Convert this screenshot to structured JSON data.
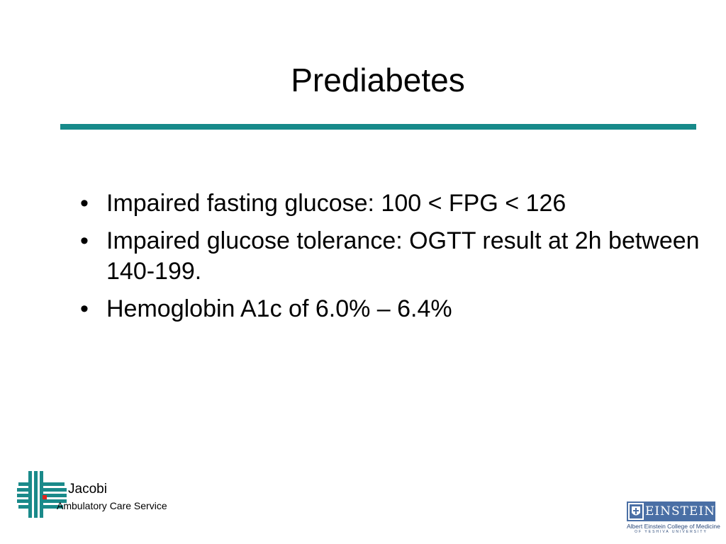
{
  "slide": {
    "title": "Prediabetes",
    "bullet_symbol": "•",
    "bullets": [
      {
        "text": "Impaired fasting glucose:  100 < FPG < 126"
      },
      {
        "text": "Impaired glucose tolerance: OGTT result at 2h between 140-199."
      },
      {
        "text": "Hemoglobin A1c of 6.0% – 6.4%"
      }
    ]
  },
  "footer": {
    "left_logo": {
      "name": "Jacobi",
      "subtitle": "Ambulatory Care Service"
    },
    "right_logo": {
      "name": "EINSTEIN",
      "college": "Albert Einstein College of Medicine",
      "university": "OF YESHIVA UNIVERSITY"
    }
  },
  "colors": {
    "rule": "#178a8a",
    "jacobi_cross": "#1a8a8a",
    "jacobi_accent": "#e0231c",
    "einstein_box": "#4a6fa5"
  },
  "icons": {
    "jacobi_logo": "teal-cross-logo",
    "einstein_logo": "einstein-shield-logo"
  }
}
